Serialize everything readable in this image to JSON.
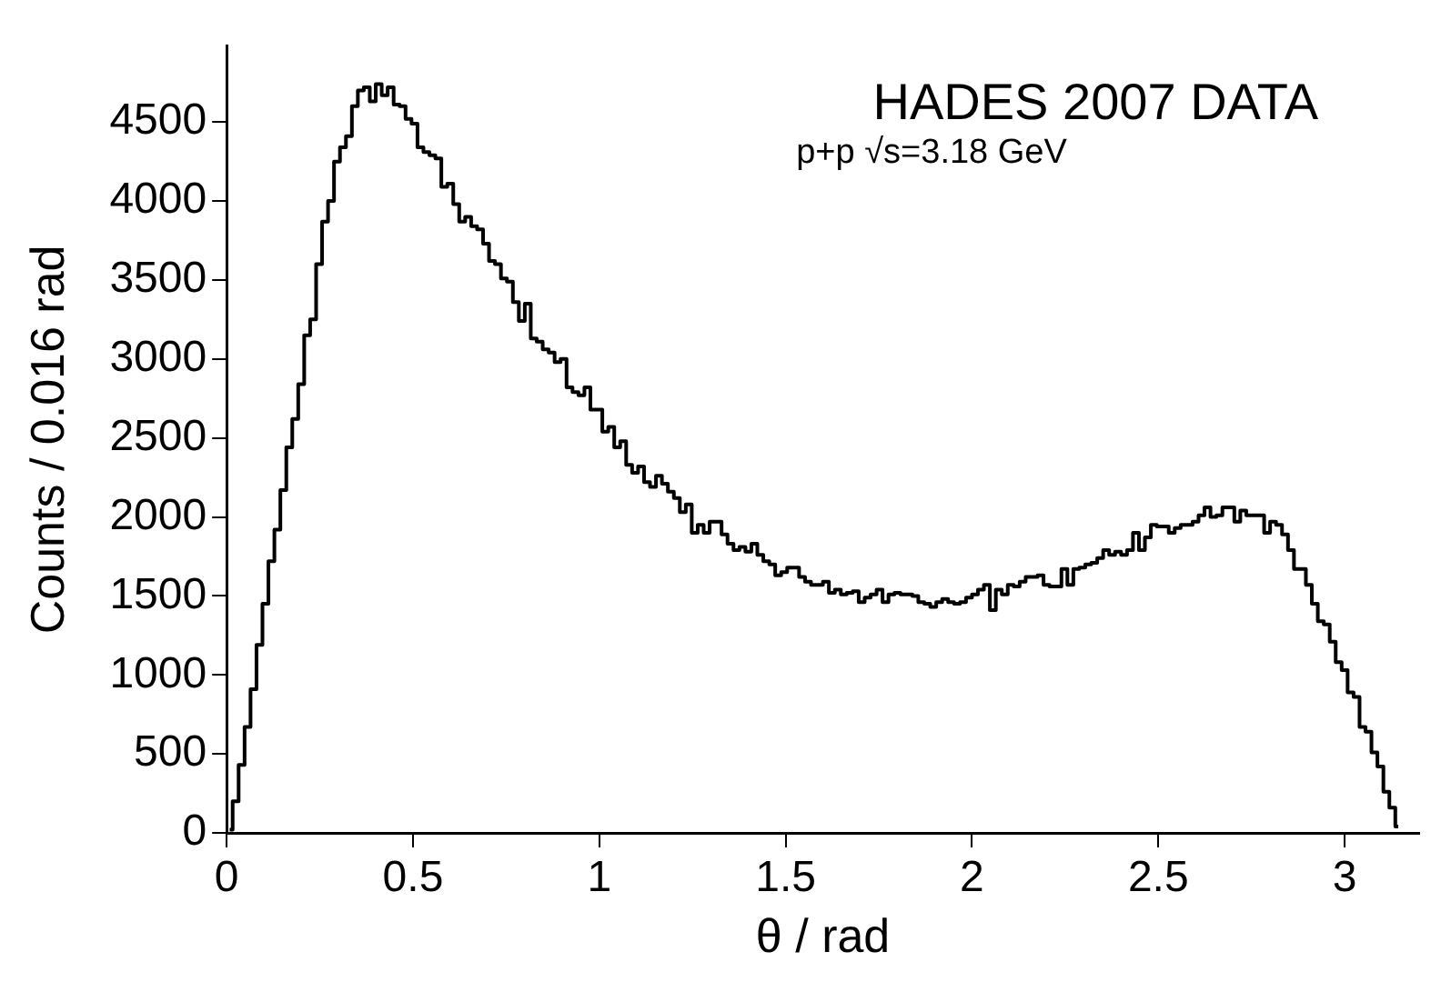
{
  "chart_data": {
    "type": "histogram",
    "xlabel": "θ / rad",
    "ylabel": "Counts / 0.016 rad",
    "annotations": [
      "HADES 2007 DATA",
      "p+p √s=3.18 GeV"
    ],
    "bins": [
      0,
      0.016,
      0.032,
      0.048,
      0.064,
      0.08,
      0.096,
      0.112,
      0.128,
      0.144,
      0.16,
      0.176,
      0.192,
      0.208,
      0.224,
      0.24,
      0.256,
      0.272,
      0.288,
      0.304,
      0.32,
      0.336,
      0.352,
      0.368,
      0.384,
      0.4,
      0.416,
      0.432,
      0.448,
      0.464,
      0.48,
      0.496,
      0.512,
      0.528,
      0.544,
      0.56,
      0.576,
      0.592,
      0.608,
      0.624,
      0.64,
      0.656,
      0.672,
      0.688,
      0.704,
      0.72,
      0.736,
      0.752,
      0.768,
      0.784,
      0.8,
      0.816,
      0.832,
      0.848,
      0.864,
      0.88,
      0.896,
      0.912,
      0.928,
      0.944,
      0.96,
      0.976,
      0.992,
      1.008,
      1.024,
      1.04,
      1.056,
      1.072,
      1.088,
      1.104,
      1.12,
      1.136,
      1.152,
      1.168,
      1.184,
      1.2,
      1.216,
      1.232,
      1.248,
      1.264,
      1.28,
      1.296,
      1.312,
      1.328,
      1.344,
      1.36,
      1.376,
      1.392,
      1.408,
      1.424,
      1.44,
      1.456,
      1.472,
      1.488,
      1.504,
      1.52,
      1.536,
      1.552,
      1.568,
      1.584,
      1.6,
      1.616,
      1.632,
      1.648,
      1.664,
      1.68,
      1.696,
      1.712,
      1.728,
      1.744,
      1.76,
      1.776,
      1.792,
      1.808,
      1.824,
      1.84,
      1.856,
      1.872,
      1.888,
      1.904,
      1.92,
      1.936,
      1.952,
      1.968,
      1.984,
      2,
      2.016,
      2.032,
      2.048,
      2.064,
      2.08,
      2.096,
      2.112,
      2.128,
      2.144,
      2.16,
      2.176,
      2.192,
      2.208,
      2.224,
      2.24,
      2.256,
      2.272,
      2.288,
      2.304,
      2.32,
      2.336,
      2.352,
      2.368,
      2.384,
      2.4,
      2.416,
      2.432,
      2.448,
      2.464,
      2.48,
      2.496,
      2.512,
      2.528,
      2.544,
      2.56,
      2.576,
      2.592,
      2.608,
      2.624,
      2.64,
      2.656,
      2.672,
      2.688,
      2.704,
      2.72,
      2.736,
      2.752,
      2.768,
      2.784,
      2.8,
      2.816,
      2.832,
      2.848,
      2.864,
      2.88,
      2.896,
      2.912,
      2.928,
      2.944,
      2.96,
      2.976,
      2.992,
      3.008,
      3.024,
      3.04,
      3.056,
      3.072,
      3.088,
      3.104,
      3.12,
      3.136,
      3.152
    ],
    "values": [
      20,
      200,
      430,
      670,
      910,
      1190,
      1450,
      1720,
      1920,
      2170,
      2440,
      2620,
      2840,
      3150,
      3250,
      3600,
      3870,
      4000,
      4250,
      4340,
      4410,
      4600,
      4700,
      4720,
      4630,
      4740,
      4670,
      4720,
      4610,
      4600,
      4520,
      4490,
      4340,
      4310,
      4290,
      4270,
      4090,
      4110,
      3980,
      3870,
      3900,
      3840,
      3820,
      3730,
      3620,
      3600,
      3510,
      3490,
      3360,
      3240,
      3350,
      3130,
      3110,
      3060,
      3040,
      2980,
      3000,
      2820,
      2790,
      2770,
      2820,
      2680,
      2680,
      2540,
      2570,
      2440,
      2480,
      2330,
      2280,
      2320,
      2220,
      2190,
      2260,
      2210,
      2160,
      2120,
      2030,
      2080,
      1900,
      1950,
      1900,
      1970,
      1970,
      1890,
      1830,
      1790,
      1810,
      1780,
      1830,
      1760,
      1720,
      1700,
      1630,
      1650,
      1680,
      1680,
      1620,
      1590,
      1570,
      1570,
      1590,
      1520,
      1540,
      1510,
      1520,
      1530,
      1460,
      1490,
      1510,
      1540,
      1460,
      1510,
      1520,
      1510,
      1510,
      1500,
      1460,
      1450,
      1430,
      1460,
      1480,
      1460,
      1450,
      1460,
      1490,
      1510,
      1540,
      1570,
      1410,
      1540,
      1510,
      1570,
      1560,
      1590,
      1620,
      1620,
      1630,
      1570,
      1560,
      1560,
      1670,
      1570,
      1670,
      1680,
      1700,
      1710,
      1740,
      1790,
      1760,
      1780,
      1760,
      1790,
      1900,
      1790,
      1870,
      1950,
      1940,
      1940,
      1900,
      1930,
      1950,
      1950,
      1970,
      2010,
      2060,
      2000,
      2010,
      2060,
      2060,
      1970,
      2040,
      2010,
      2010,
      2010,
      1900,
      1970,
      1950,
      1890,
      1790,
      1670,
      1670,
      1570,
      1450,
      1340,
      1320,
      1210,
      1080,
      1030,
      890,
      860,
      670,
      640,
      510,
      420,
      260,
      160,
      40
    ],
    "color": "#000000",
    "xlim": [
      0,
      3.2
    ],
    "ylim": [
      0,
      4980
    ],
    "xticks": [
      0,
      0.5,
      1,
      1.5,
      2,
      2.5,
      3
    ],
    "yticks": [
      0,
      500,
      1000,
      1500,
      2000,
      2500,
      3000,
      3500,
      4000,
      4500
    ],
    "grid": false,
    "legend": false
  }
}
